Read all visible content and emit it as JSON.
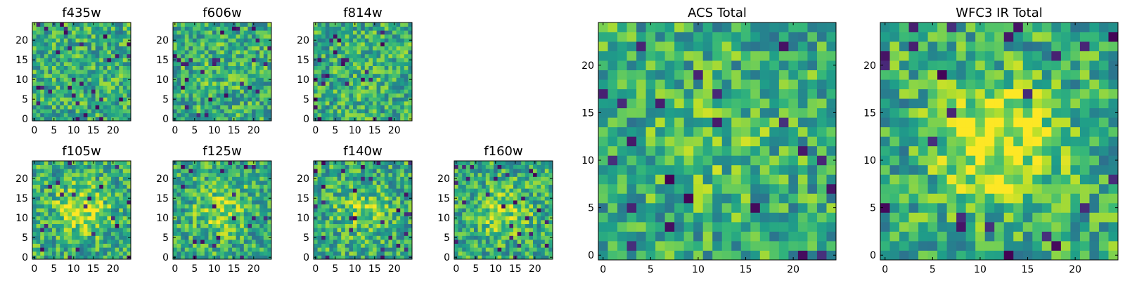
{
  "chart_data": [
    {
      "type": "heatmap",
      "title": "f435w",
      "grid_size": 25,
      "xticks": [
        "0",
        "5",
        "10",
        "15",
        "20"
      ],
      "yticks": [
        "0",
        "5",
        "10",
        "15",
        "20"
      ],
      "seed": 11,
      "blob": 0.0
    },
    {
      "type": "heatmap",
      "title": "f606w",
      "grid_size": 25,
      "xticks": [
        "0",
        "5",
        "10",
        "15",
        "20"
      ],
      "yticks": [
        "0",
        "5",
        "10",
        "15",
        "20"
      ],
      "seed": 23,
      "blob": 0.05
    },
    {
      "type": "heatmap",
      "title": "f814w",
      "grid_size": 25,
      "xticks": [
        "0",
        "5",
        "10",
        "15",
        "20"
      ],
      "yticks": [
        "0",
        "5",
        "10",
        "15",
        "20"
      ],
      "seed": 37,
      "blob": 0.05
    },
    {
      "type": "heatmap",
      "title": "f105w",
      "grid_size": 25,
      "xticks": [
        "0",
        "5",
        "10",
        "15",
        "20"
      ],
      "yticks": [
        "0",
        "5",
        "10",
        "15",
        "20"
      ],
      "seed": 41,
      "blob": 0.35
    },
    {
      "type": "heatmap",
      "title": "f125w",
      "grid_size": 25,
      "xticks": [
        "0",
        "5",
        "10",
        "15",
        "20"
      ],
      "yticks": [
        "0",
        "5",
        "10",
        "15",
        "20"
      ],
      "seed": 53,
      "blob": 0.25
    },
    {
      "type": "heatmap",
      "title": "f140w",
      "grid_size": 25,
      "xticks": [
        "0",
        "5",
        "10",
        "15",
        "20"
      ],
      "yticks": [
        "0",
        "5",
        "10",
        "15",
        "20"
      ],
      "seed": 67,
      "blob": 0.2
    },
    {
      "type": "heatmap",
      "title": "f160w",
      "grid_size": 25,
      "xticks": [
        "0",
        "5",
        "10",
        "15",
        "20"
      ],
      "yticks": [
        "0",
        "5",
        "10",
        "15",
        "20"
      ],
      "seed": 71,
      "blob": 0.25
    },
    {
      "type": "heatmap",
      "title": "ACS Total",
      "grid_size": 25,
      "xticks": [
        "0",
        "5",
        "10",
        "15",
        "20"
      ],
      "yticks": [
        "0",
        "5",
        "10",
        "15",
        "20"
      ],
      "seed": 83,
      "blob": 0.1
    },
    {
      "type": "heatmap",
      "title": "WFC3 IR Total",
      "grid_size": 25,
      "xticks": [
        "0",
        "5",
        "10",
        "15",
        "20"
      ],
      "yticks": [
        "0",
        "5",
        "10",
        "15",
        "20"
      ],
      "seed": 97,
      "blob": 0.4
    }
  ]
}
